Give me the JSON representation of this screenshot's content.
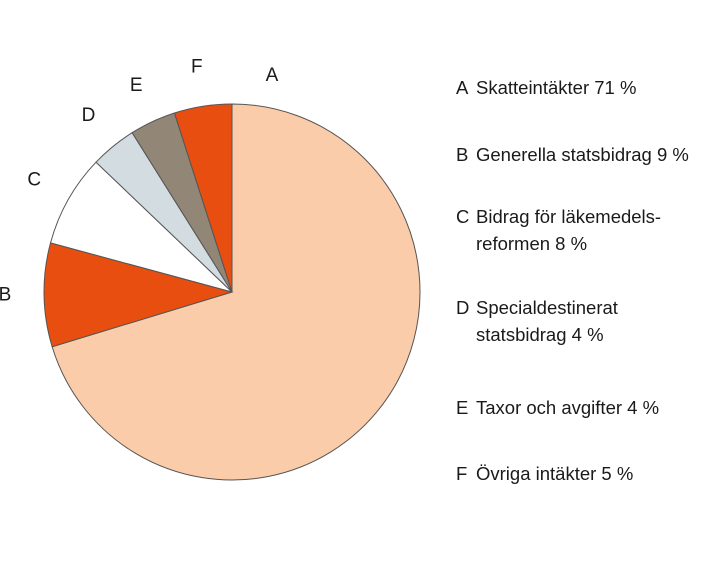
{
  "chart_data": {
    "type": "pie",
    "title": "",
    "start": "12 o'clock",
    "direction": "clockwise",
    "slices": [
      {
        "key": "A",
        "label": "Skatteintäkter",
        "value": 71,
        "display": "Skatteintäkter 71 %",
        "color": "#fbccaa"
      },
      {
        "key": "B",
        "label": "Generella statsbidrag",
        "value": 9,
        "display": "Generella statsbidrag 9 %",
        "color": "#e84e0f"
      },
      {
        "key": "C",
        "label": "Bidrag för läkemedelsreformen",
        "value": 8,
        "display_lines": [
          "Bidrag för läkemedels-",
          "reformen 8 %"
        ],
        "color": "#ffffff"
      },
      {
        "key": "D",
        "label": "Specialdestinerat statsbidrag",
        "value": 4,
        "display_lines": [
          "Specialdestinerat",
          "statsbidrag 4 %"
        ],
        "color": "#d3dce0"
      },
      {
        "key": "E",
        "label": "Taxor och avgifter",
        "value": 4,
        "display": "Taxor och avgifter 4 %",
        "color": "#928677"
      },
      {
        "key": "F",
        "label": "Övriga intäkter",
        "value": 5,
        "display": "Övriga intäkter 5 %",
        "color": "#e84e0f"
      }
    ],
    "outline_color": "#555555"
  }
}
